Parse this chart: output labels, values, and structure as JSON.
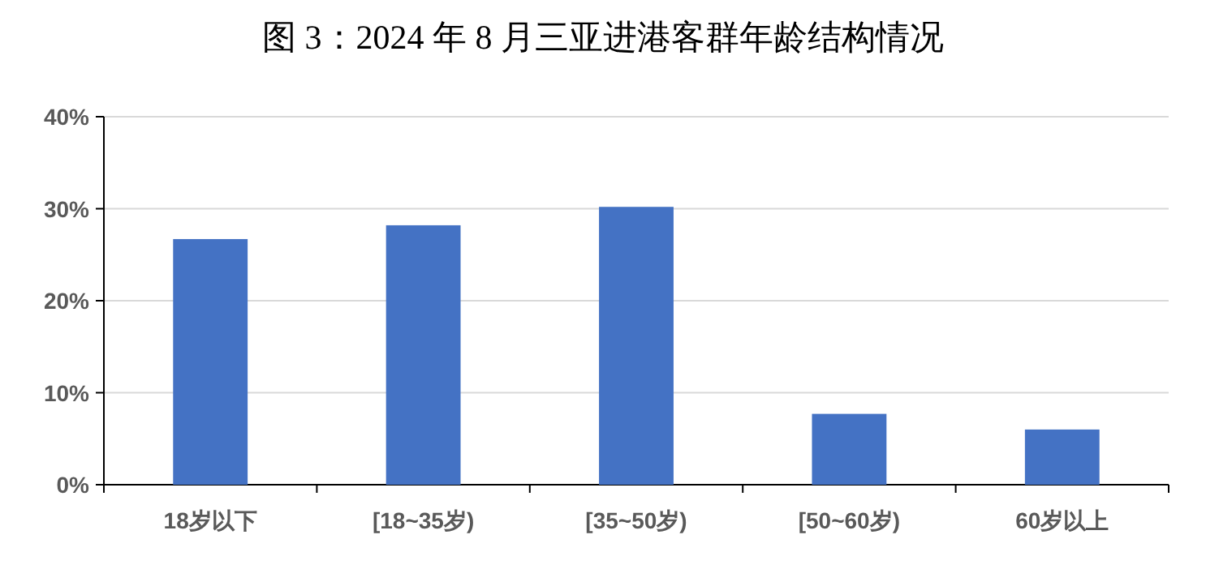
{
  "chart_data": {
    "type": "bar",
    "title": "图 3：2024 年 8 月三亚进港客群年龄结构情况",
    "categories": [
      "18岁以下",
      "[18~35岁)",
      "[35~50岁)",
      "[50~60岁)",
      "60岁以上"
    ],
    "values": [
      26.7,
      28.2,
      30.2,
      7.7,
      6.0
    ],
    "color": "#4472c4",
    "ylim": [
      0,
      40
    ],
    "yticks": [
      {
        "value": 0,
        "label": "0%"
      },
      {
        "value": 10,
        "label": "10%"
      },
      {
        "value": 20,
        "label": "20%"
      },
      {
        "value": 30,
        "label": "30%"
      },
      {
        "value": 40,
        "label": "40%"
      }
    ],
    "grid": "y"
  }
}
